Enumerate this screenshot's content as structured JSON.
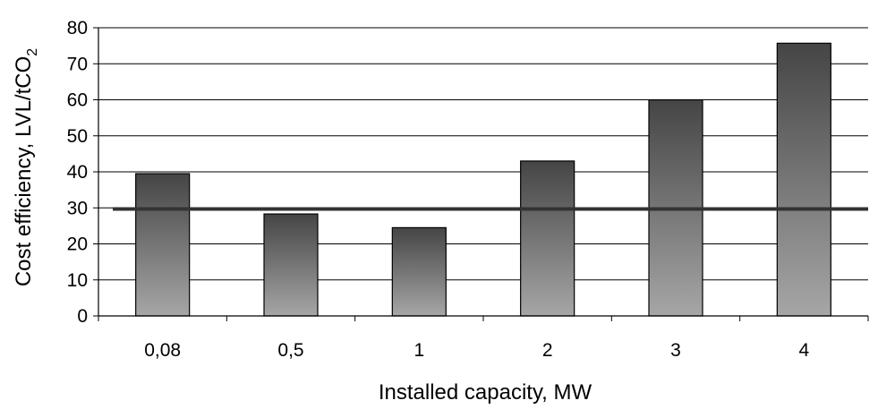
{
  "chart_data": {
    "type": "bar",
    "title": "",
    "xlabel": "Installed capacity, MW",
    "ylabel": "Cost efficiency, LVL/tCO",
    "ylabel_subscript": "2",
    "categories": [
      "0,08",
      "0,5",
      "1",
      "2",
      "3",
      "4"
    ],
    "values": [
      39.5,
      28.3,
      24.5,
      43,
      60,
      75.7
    ],
    "ylim": [
      0,
      80
    ],
    "yticks": [
      0,
      10,
      20,
      30,
      40,
      50,
      60,
      70,
      80
    ],
    "reference_line": {
      "value": 29.7,
      "color": "#333333"
    },
    "grid": "horizontal",
    "legend": "none",
    "colors": {
      "bar_top": "#454545",
      "bar_bottom": "#a6a6a6",
      "bar_stroke": "#000000",
      "grid": "#000000"
    }
  }
}
